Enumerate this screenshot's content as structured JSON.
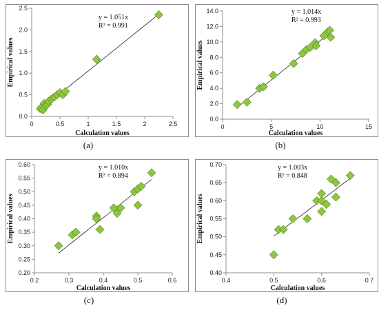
{
  "colors": {
    "marker": "#8fc63f",
    "marker_edge": "#5b8a22",
    "trendline": "#3a3a3a",
    "frame": "#8c8c8c"
  },
  "chart_data": [
    {
      "type": "scatter",
      "caption": "(a)",
      "xlabel": "Calculation values",
      "ylabel": "Empirical values",
      "equation": "y = 1.051x",
      "r2": "R² = 0.991",
      "slope": 1.051,
      "xlim": [
        0,
        2.5
      ],
      "ylim": [
        0,
        2.5
      ],
      "xticks": [
        0,
        0.5,
        1,
        1.5,
        2,
        2.5
      ],
      "xtick_labels": [
        "0",
        "0.5",
        "1",
        "1.5",
        "2",
        "2.5"
      ],
      "yticks": [
        0,
        0.5,
        1,
        1.5,
        2,
        2.5
      ],
      "ytick_labels": [
        "0.0",
        "0.5",
        "1.0",
        "1.5",
        "2.0",
        "2.5"
      ],
      "x": [
        0.15,
        0.18,
        0.2,
        0.22,
        0.25,
        0.28,
        0.3,
        0.35,
        0.4,
        0.45,
        0.5,
        0.55,
        0.6,
        1.15,
        2.25
      ],
      "y": [
        0.18,
        0.22,
        0.15,
        0.3,
        0.25,
        0.28,
        0.35,
        0.4,
        0.45,
        0.5,
        0.55,
        0.5,
        0.58,
        1.32,
        2.35
      ]
    },
    {
      "type": "scatter",
      "caption": "(b)",
      "xlabel": "Calculation values",
      "ylabel": "Empirical values",
      "equation": "y = 1.014x",
      "r2": "R² = 0.993",
      "slope": 1.014,
      "xlim": [
        0,
        15
      ],
      "ylim": [
        0,
        14
      ],
      "xticks": [
        0,
        5,
        10,
        15
      ],
      "xtick_labels": [
        "0",
        "5",
        "10",
        "15"
      ],
      "yticks": [
        0,
        2,
        4,
        6,
        8,
        10,
        12,
        14
      ],
      "ytick_labels": [
        "0.0",
        "2.0",
        "4.0",
        "6.0",
        "8.0",
        "10.0",
        "12.0",
        "14.0"
      ],
      "x": [
        1.5,
        2.5,
        3.8,
        4.2,
        5.2,
        7.3,
        8.2,
        8.6,
        9.0,
        9.5,
        9.6,
        10.4,
        10.8,
        11.0,
        11.1
      ],
      "y": [
        1.9,
        2.2,
        4.0,
        4.2,
        5.7,
        7.2,
        8.5,
        9.0,
        9.3,
        9.9,
        9.5,
        10.8,
        11.3,
        11.5,
        10.6
      ]
    },
    {
      "type": "scatter",
      "caption": "(c)",
      "xlabel": "Calculation values",
      "ylabel": "Empirical values",
      "equation": "y = 1.010x",
      "r2": "R² = 0.894",
      "slope": 1.01,
      "xlim": [
        0.2,
        0.6
      ],
      "ylim": [
        0.2,
        0.6
      ],
      "xticks": [
        0.2,
        0.3,
        0.4,
        0.5,
        0.6
      ],
      "xtick_labels": [
        "0.2",
        "0.3",
        "0.4",
        "0.5",
        "0.6"
      ],
      "yticks": [
        0.2,
        0.25,
        0.3,
        0.35,
        0.4,
        0.45,
        0.5,
        0.55,
        0.6
      ],
      "ytick_labels": [
        "0.20",
        "0.25",
        "0.30",
        "0.35",
        "0.40",
        "0.45",
        "0.50",
        "0.55",
        "0.60"
      ],
      "x": [
        0.27,
        0.31,
        0.32,
        0.38,
        0.38,
        0.39,
        0.43,
        0.44,
        0.45,
        0.49,
        0.5,
        0.5,
        0.51,
        0.54
      ],
      "y": [
        0.3,
        0.34,
        0.35,
        0.41,
        0.4,
        0.36,
        0.44,
        0.42,
        0.44,
        0.5,
        0.51,
        0.45,
        0.52,
        0.57
      ]
    },
    {
      "type": "scatter",
      "caption": "(d)",
      "xlabel": "Calculation values",
      "ylabel": "Empirical values",
      "equation": "y = 1.003x",
      "r2": "R² = 0.848",
      "slope": 1.003,
      "xlim": [
        0.4,
        0.7
      ],
      "ylim": [
        0.4,
        0.7
      ],
      "xticks": [
        0.4,
        0.5,
        0.6,
        0.7
      ],
      "xtick_labels": [
        "0.4",
        "0.5",
        "0.6",
        "0.7"
      ],
      "yticks": [
        0.4,
        0.45,
        0.5,
        0.55,
        0.6,
        0.65,
        0.7
      ],
      "ytick_labels": [
        "0.40",
        "0.45",
        "0.50",
        "0.55",
        "0.60",
        "0.65",
        "0.70"
      ],
      "x": [
        0.5,
        0.51,
        0.52,
        0.54,
        0.57,
        0.59,
        0.6,
        0.6,
        0.6,
        0.61,
        0.61,
        0.62,
        0.63,
        0.63,
        0.66
      ],
      "y": [
        0.45,
        0.52,
        0.52,
        0.55,
        0.55,
        0.6,
        0.6,
        0.57,
        0.62,
        0.59,
        0.59,
        0.66,
        0.61,
        0.65,
        0.67
      ]
    }
  ]
}
